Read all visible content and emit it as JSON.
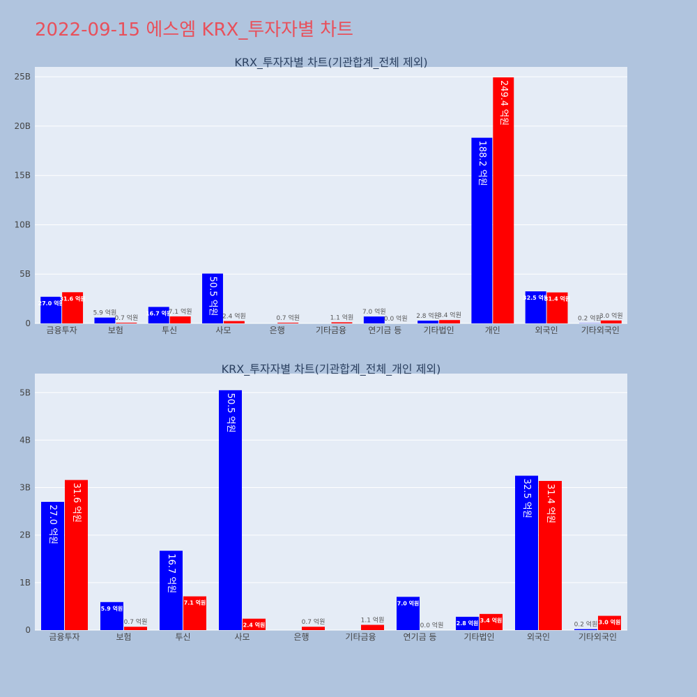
{
  "page_title": "2022-09-15 에스엠 KRX_투자자별 차트",
  "colors": {
    "series_a": "#0000ff",
    "series_b": "#ff0000",
    "plot_bg": "#e5ecf6",
    "page_bg": "#b0c4de",
    "title": "#e8505b"
  },
  "chart_data": [
    {
      "type": "bar",
      "title": "KRX_투자자별 차트(기관합계_전체 제외)",
      "categories": [
        "금융투자",
        "보험",
        "투신",
        "사모",
        "은행",
        "기타금융",
        "연기금 등",
        "기타법인",
        "개인",
        "외국인",
        "기타외국인"
      ],
      "series": [
        {
          "values": [
            2.7,
            0.59,
            1.67,
            5.05,
            0.0,
            0.0,
            0.7,
            0.28,
            18.82,
            3.25,
            0.02
          ],
          "labels": [
            "27.0 억원",
            "5.9 억원",
            "16.7 억원",
            "50.5 억원",
            "",
            "",
            "7.0 억원",
            "2.8 억원",
            "188.2 억원",
            "32.5 억원",
            "0.2 억원"
          ]
        },
        {
          "values": [
            3.16,
            0.07,
            0.71,
            0.24,
            0.07,
            0.11,
            0.0,
            0.34,
            24.94,
            3.14,
            0.3
          ],
          "labels": [
            "31.6 억원",
            "0.7 억원",
            "7.1 억원",
            "2.4 억원",
            "0.7 억원",
            "1.1 억원",
            "0.0 억원",
            "3.4 억원",
            "249.4 억원",
            "31.4 억원",
            "3.0 억원"
          ]
        }
      ],
      "ylim": [
        0,
        26
      ],
      "yticks": [
        0,
        5,
        10,
        15,
        20,
        25
      ],
      "ytick_labels": [
        "0",
        "5B",
        "10B",
        "15B",
        "20B",
        "25B"
      ],
      "grid": true
    },
    {
      "type": "bar",
      "title": "KRX_투자자별 차트(기관합계_전체_개인 제외)",
      "categories": [
        "금융투자",
        "보험",
        "투신",
        "사모",
        "은행",
        "기타금융",
        "연기금 등",
        "기타법인",
        "외국인",
        "기타외국인"
      ],
      "series": [
        {
          "values": [
            2.7,
            0.59,
            1.67,
            5.05,
            0.0,
            0.0,
            0.7,
            0.28,
            3.25,
            0.02
          ],
          "labels": [
            "27.0 억원",
            "5.9 억원",
            "16.7 억원",
            "50.5 억원",
            "",
            "",
            "7.0 억원",
            "2.8 억원",
            "32.5 억원",
            "0.2 억원"
          ]
        },
        {
          "values": [
            3.16,
            0.07,
            0.71,
            0.24,
            0.07,
            0.11,
            0.0,
            0.34,
            3.14,
            0.3
          ],
          "labels": [
            "31.6 억원",
            "0.7 억원",
            "7.1 억원",
            "2.4 억원",
            "0.7 억원",
            "1.1 억원",
            "0.0 억원",
            "3.4 억원",
            "31.4 억원",
            "3.0 억원"
          ]
        }
      ],
      "ylim": [
        0,
        5.4
      ],
      "yticks": [
        0,
        1,
        2,
        3,
        4,
        5
      ],
      "ytick_labels": [
        "0",
        "1B",
        "2B",
        "3B",
        "4B",
        "5B"
      ],
      "grid": true
    }
  ]
}
